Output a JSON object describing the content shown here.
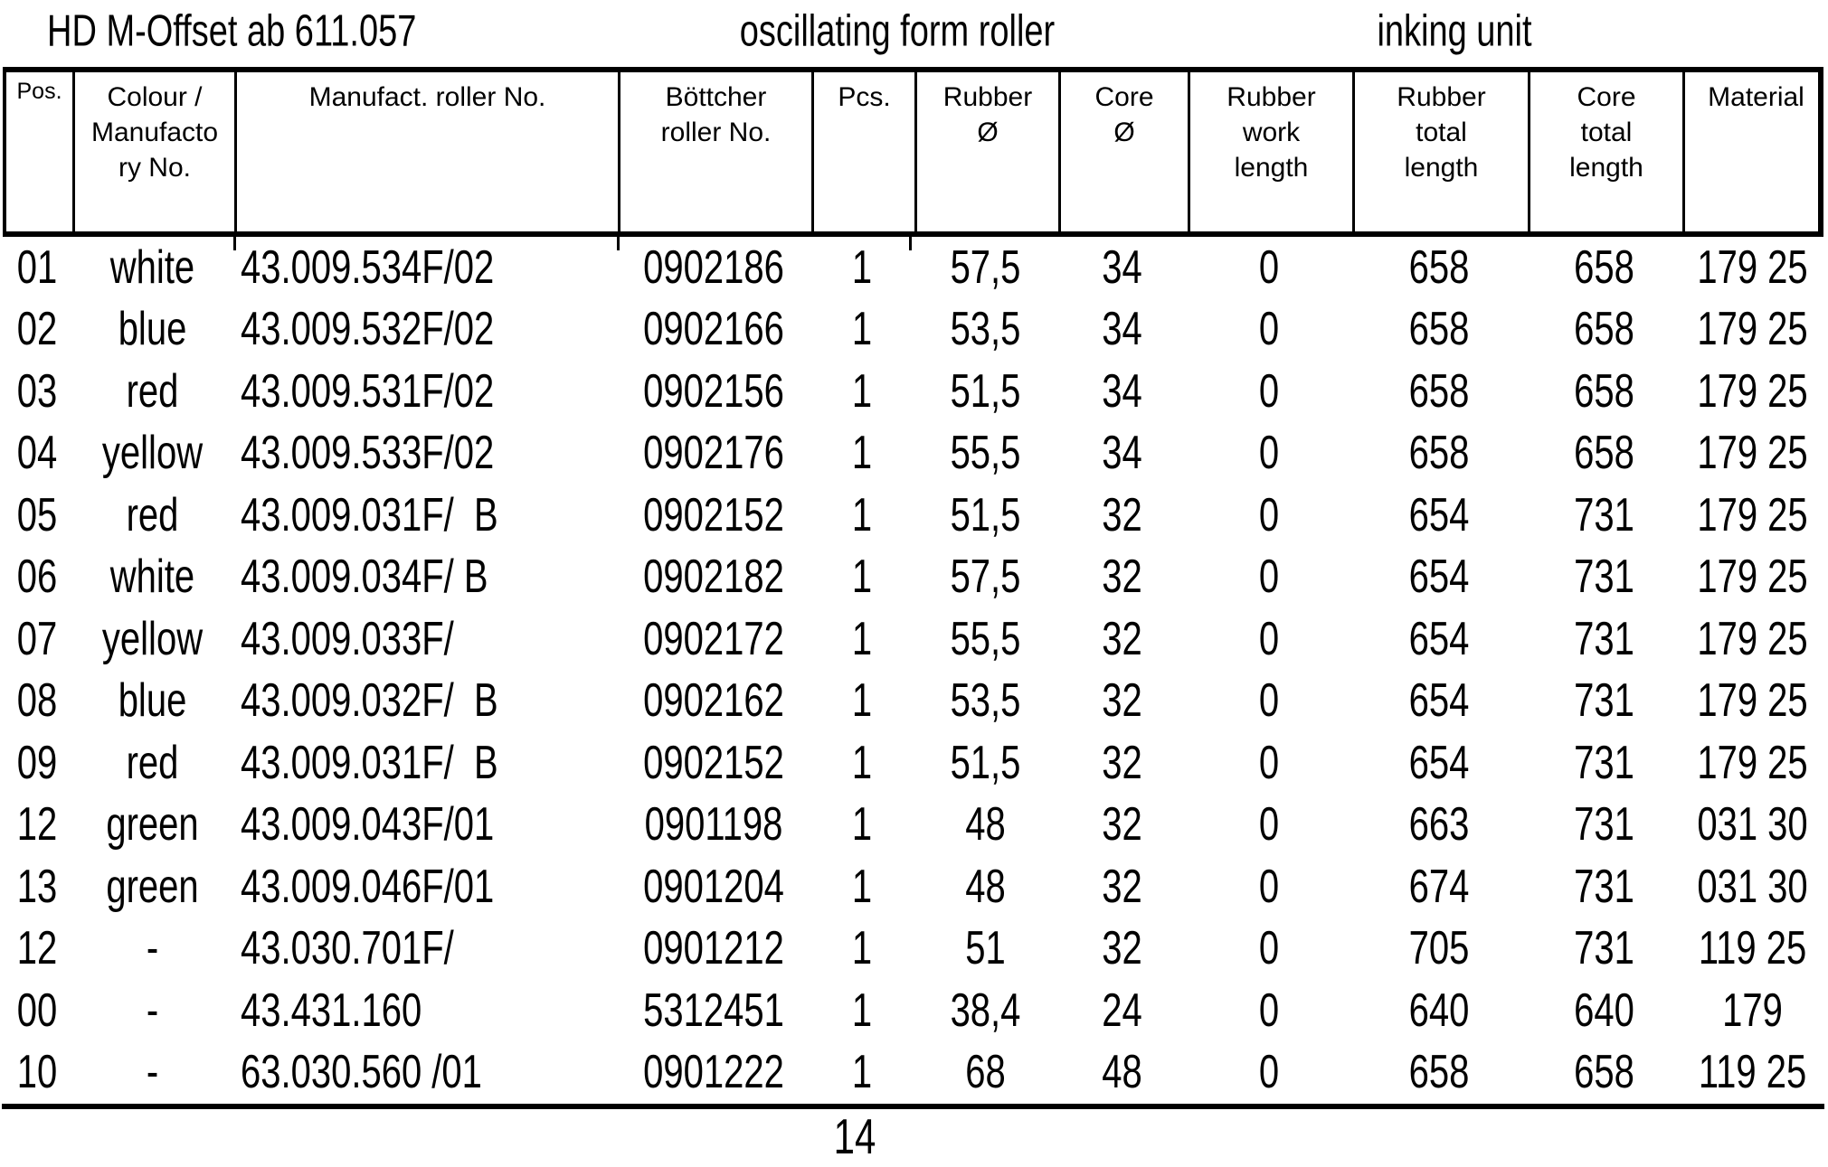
{
  "page": {
    "title_left": "HD M-Offset ab 611.057",
    "title_center": "oscillating form roller",
    "title_right": "inking unit",
    "page_number": "14"
  },
  "table": {
    "columns": [
      {
        "id": "pos",
        "lines": [
          "Pos."
        ]
      },
      {
        "id": "colour-manufactory-no",
        "lines": [
          "Colour /",
          "Manufacto",
          "ry No."
        ]
      },
      {
        "id": "manufact-roller-no",
        "lines": [
          "Manufact. roller No."
        ]
      },
      {
        "id": "boettcher-roller-no",
        "lines": [
          "Böttcher",
          "roller No."
        ]
      },
      {
        "id": "pcs",
        "lines": [
          "Pcs."
        ]
      },
      {
        "id": "rubber-diameter",
        "lines": [
          "Rubber",
          "Ø"
        ]
      },
      {
        "id": "core-diameter",
        "lines": [
          "Core",
          "Ø"
        ]
      },
      {
        "id": "rubber-work-length",
        "lines": [
          "Rubber",
          "work",
          "length"
        ]
      },
      {
        "id": "rubber-total-length",
        "lines": [
          "Rubber",
          "total",
          "length"
        ]
      },
      {
        "id": "core-total-length",
        "lines": [
          "Core",
          "total",
          "length"
        ]
      },
      {
        "id": "material",
        "lines": [
          "Material"
        ]
      }
    ],
    "rows": [
      [
        "01",
        "white",
        "43.009.534F/02",
        "0902186",
        "1",
        "57,5",
        "34",
        "0",
        "658",
        "658",
        "179 25"
      ],
      [
        "02",
        "blue",
        "43.009.532F/02",
        "0902166",
        "1",
        "53,5",
        "34",
        "0",
        "658",
        "658",
        "179 25"
      ],
      [
        "03",
        "red",
        "43.009.531F/02",
        "0902156",
        "1",
        "51,5",
        "34",
        "0",
        "658",
        "658",
        "179 25"
      ],
      [
        "04",
        "yellow",
        "43.009.533F/02",
        "0902176",
        "1",
        "55,5",
        "34",
        "0",
        "658",
        "658",
        "179 25"
      ],
      [
        "05",
        "red",
        "43.009.031F/  B",
        "0902152",
        "1",
        "51,5",
        "32",
        "0",
        "654",
        "731",
        "179 25"
      ],
      [
        "06",
        "white",
        "43.009.034F/ B",
        "0902182",
        "1",
        "57,5",
        "32",
        "0",
        "654",
        "731",
        "179 25"
      ],
      [
        "07",
        "yellow",
        "43.009.033F/",
        "0902172",
        "1",
        "55,5",
        "32",
        "0",
        "654",
        "731",
        "179 25"
      ],
      [
        "08",
        "blue",
        "43.009.032F/  B",
        "0902162",
        "1",
        "53,5",
        "32",
        "0",
        "654",
        "731",
        "179 25"
      ],
      [
        "09",
        "red",
        "43.009.031F/  B",
        "0902152",
        "1",
        "51,5",
        "32",
        "0",
        "654",
        "731",
        "179 25"
      ],
      [
        "12",
        "green",
        "43.009.043F/01",
        "0901198",
        "1",
        "48",
        "32",
        "0",
        "663",
        "731",
        "031 30"
      ],
      [
        "13",
        "green",
        "43.009.046F/01",
        "0901204",
        "1",
        "48",
        "32",
        "0",
        "674",
        "731",
        "031 30"
      ],
      [
        "12",
        "-",
        "43.030.701F/",
        "0901212",
        "1",
        "51",
        "32",
        "0",
        "705",
        "731",
        "119 25"
      ],
      [
        "00",
        "-",
        "43.431.160",
        "5312451",
        "1",
        "38,4",
        "24",
        "0",
        "640",
        "640",
        "179"
      ],
      [
        "10",
        "-",
        "63.030.560 /01",
        "0901222",
        "1",
        "68",
        "48",
        "0",
        "658",
        "658",
        "119 25"
      ]
    ]
  }
}
